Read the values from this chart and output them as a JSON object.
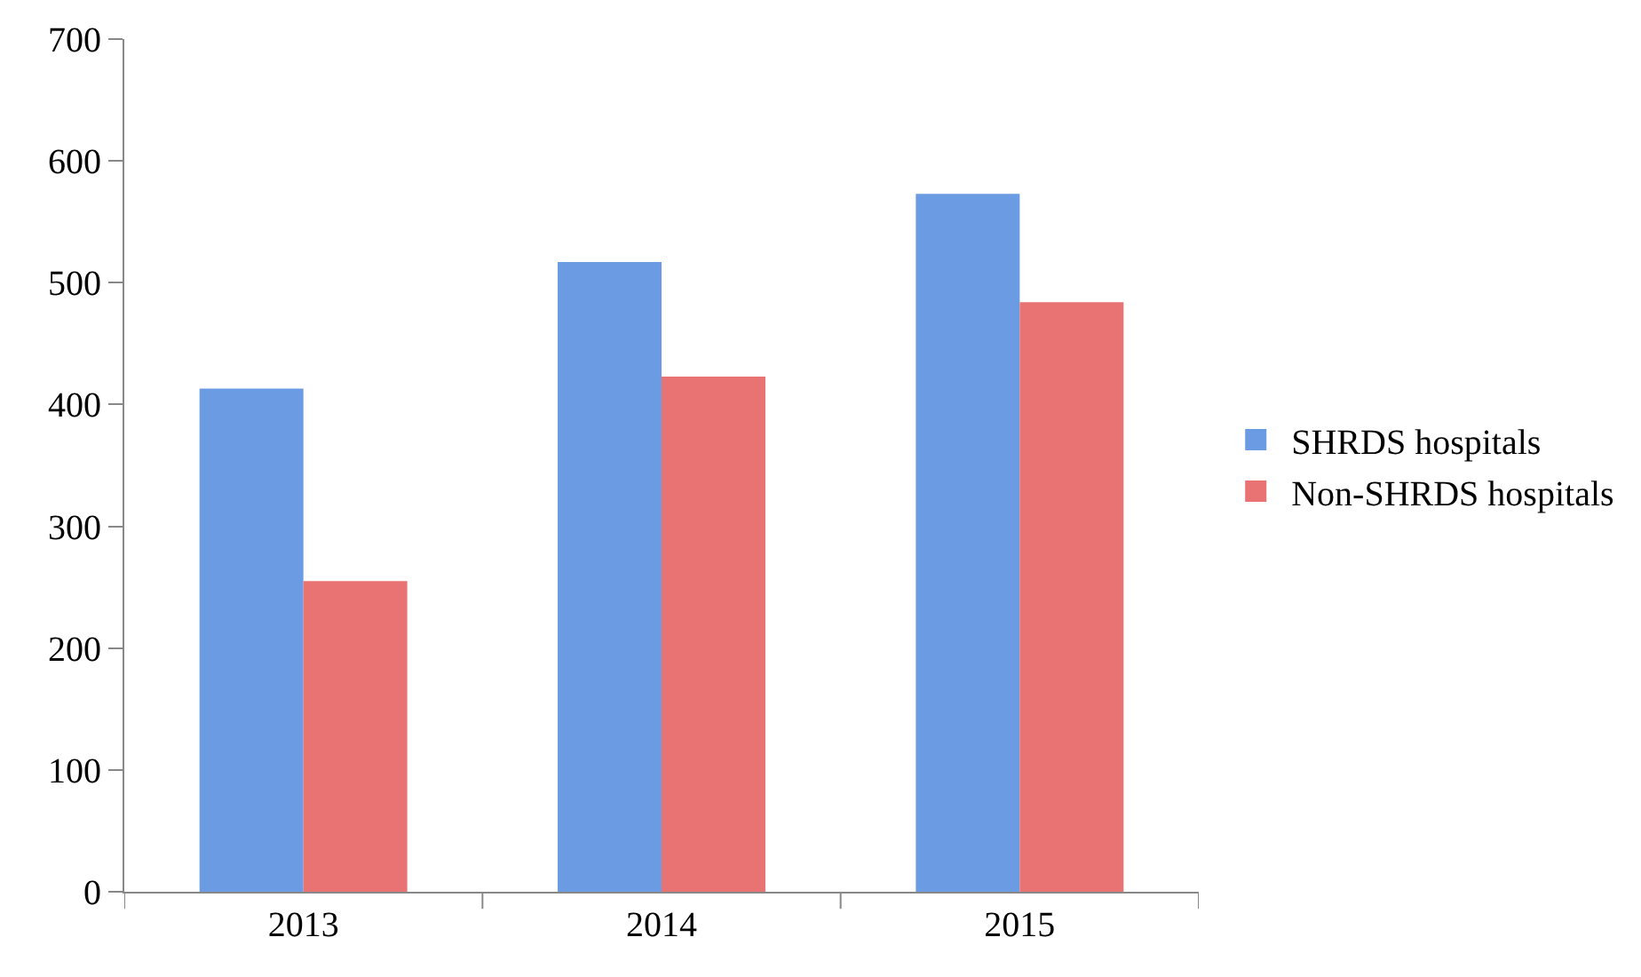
{
  "chart_data": {
    "type": "bar",
    "categories": [
      "2013",
      "2014",
      "2015"
    ],
    "series": [
      {
        "name": "SHRDS hospitals",
        "color": "#6a9be3",
        "values": [
          413,
          517,
          573
        ]
      },
      {
        "name": "Non-SHRDS hospitals",
        "color": "#e87372",
        "values": [
          255,
          423,
          484
        ]
      }
    ],
    "ylim": [
      0,
      700
    ],
    "yticks": [
      0,
      100,
      200,
      300,
      400,
      500,
      600,
      700
    ],
    "legend": "right"
  }
}
